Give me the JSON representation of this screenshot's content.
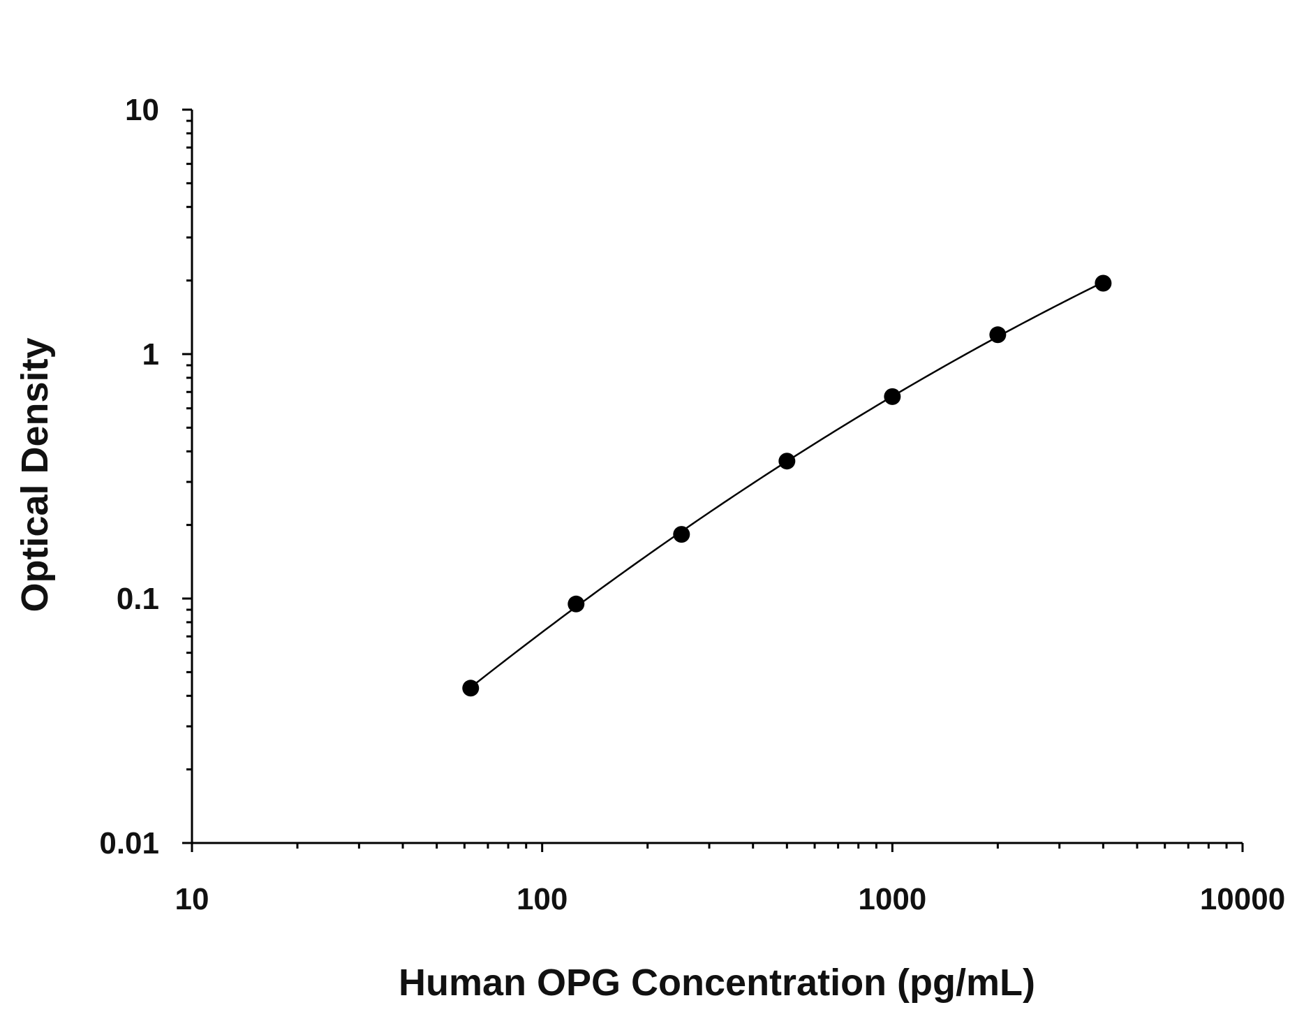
{
  "chart_data": {
    "type": "scatter",
    "title": "",
    "xlabel": "Human OPG Concentration (pg/mL)",
    "ylabel": "Optical Density",
    "xscale": "log",
    "yscale": "log",
    "xlim": [
      10,
      10000
    ],
    "ylim": [
      0.01,
      10
    ],
    "x_tick_labels": [
      "10",
      "100",
      "1000",
      "10000"
    ],
    "y_tick_labels": [
      "0.01",
      "0.1",
      "1",
      "10"
    ],
    "grid": false,
    "legend": "none",
    "series": [
      {
        "x": [
          62.5,
          125,
          250,
          500,
          1000,
          2000,
          4000
        ],
        "y": [
          0.043,
          0.095,
          0.183,
          0.365,
          0.67,
          1.2,
          1.95
        ],
        "marker": "circle",
        "fit_line": true,
        "color": "#000000"
      }
    ]
  }
}
